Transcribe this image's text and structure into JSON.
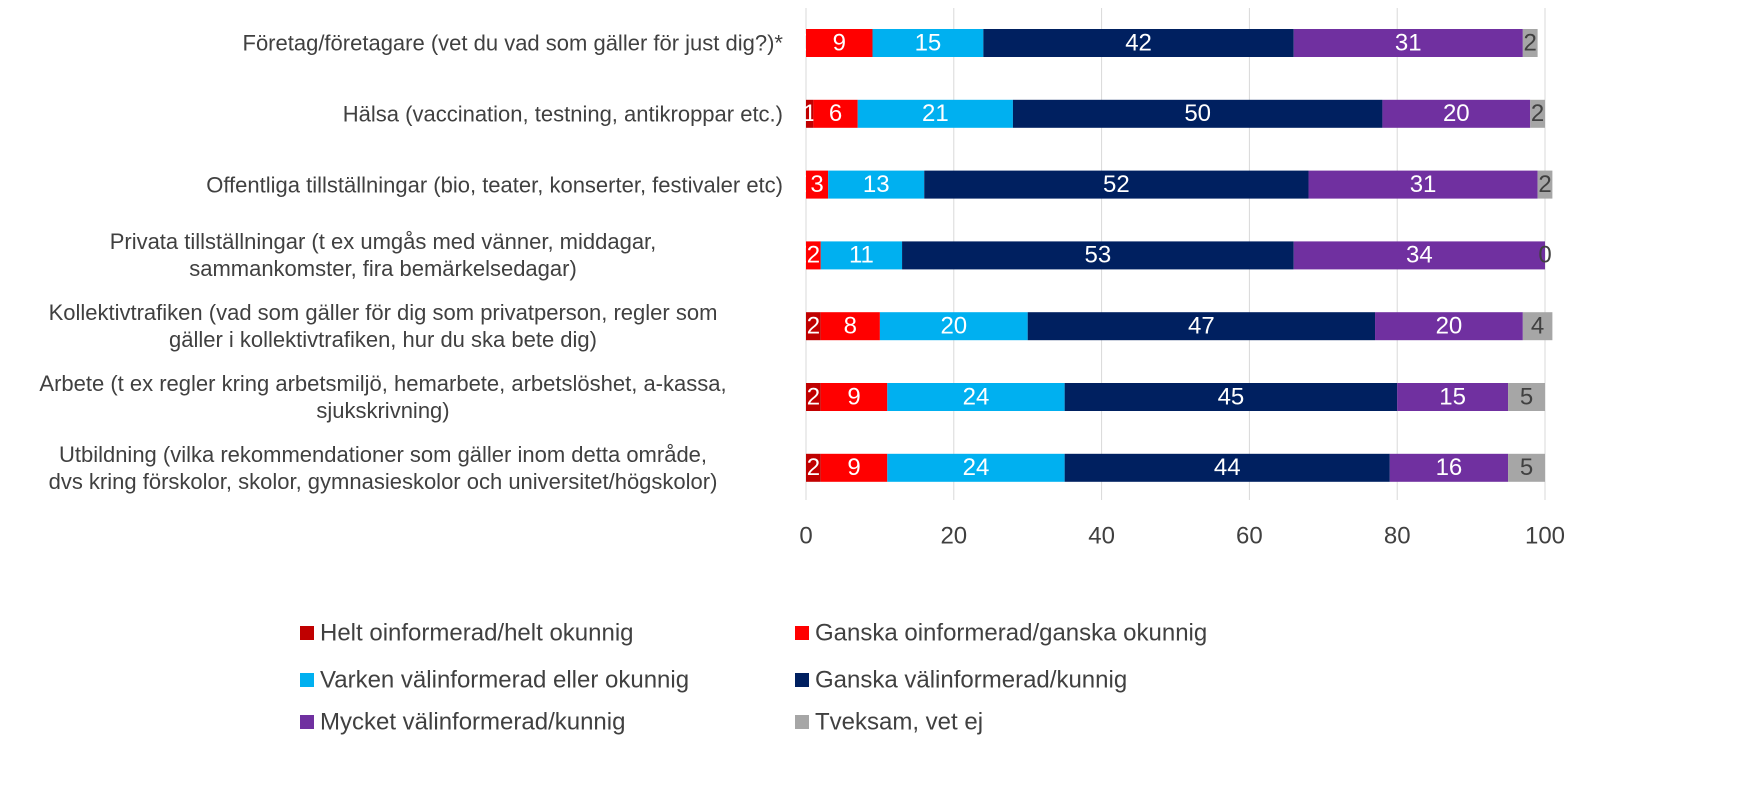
{
  "chart_data": {
    "type": "stacked_barh",
    "categories": [
      "Företag/företagare (vet du vad som gäller för just dig?)*",
      "Hälsa (vaccination, testning, antikroppar etc.)",
      "Offentliga tillställningar (bio, teater, konserter, festivaler etc)",
      "Privata tillställningar (t ex umgås med vänner, middagar,\nsammankomster, fira bemärkelsedagar)",
      "Kollektivtrafiken (vad som gäller för dig som privatperson, regler som\ngäller i kollektivtrafiken, hur du ska bete dig)",
      "Arbete (t ex regler kring arbetsmiljö, hemarbete, arbetslöshet, a-kassa,\nsjukskrivning)",
      "Utbildning (vilka rekommendationer som gäller inom detta område,\ndvs kring förskolor, skolor, gymnasieskolor och universitet/högskolor)"
    ],
    "series": [
      {
        "name": "Helt oinformerad/helt okunnig",
        "color": "#c00000",
        "values": [
          0,
          1,
          0,
          0,
          2,
          2,
          2
        ]
      },
      {
        "name": "Ganska oinformerad/ganska okunnig",
        "color": "#ff0000",
        "values": [
          9,
          6,
          3,
          2,
          8,
          9,
          9
        ]
      },
      {
        "name": "Varken välinformerad eller okunnig",
        "color": "#00b0f0",
        "values": [
          15,
          21,
          13,
          11,
          20,
          24,
          24
        ]
      },
      {
        "name": "Ganska välinformerad/kunnig",
        "color": "#002060",
        "values": [
          42,
          50,
          52,
          53,
          47,
          45,
          44
        ]
      },
      {
        "name": "Mycket välinformerad/kunnig",
        "color": "#7030a0",
        "values": [
          31,
          20,
          31,
          34,
          20,
          15,
          16
        ]
      },
      {
        "name": "Tveksam, vet ej",
        "color": "#a6a6a6",
        "values": [
          2,
          2,
          2,
          0,
          4,
          5,
          5
        ]
      }
    ],
    "xlim": [
      0,
      100
    ],
    "xticks": [
      0,
      20,
      40,
      60,
      80,
      100
    ],
    "grid": true
  }
}
